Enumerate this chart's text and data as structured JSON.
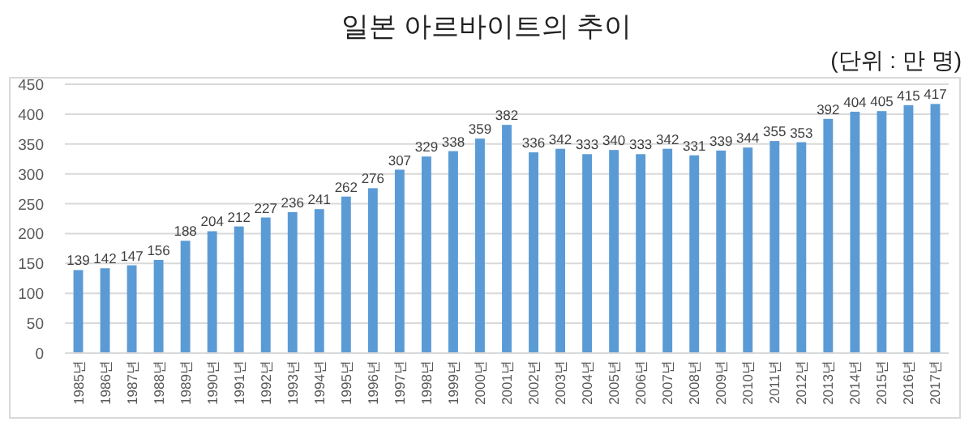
{
  "chart_data": {
    "type": "bar",
    "title": "일본 아르바이트의 추이",
    "annotations": [
      "(단위 : 만 명)"
    ],
    "categories": [
      "1985년",
      "1986년",
      "1987년",
      "1988년",
      "1989년",
      "1990년",
      "1991년",
      "1992년",
      "1993년",
      "1994년",
      "1995년",
      "1996년",
      "1997년",
      "1998년",
      "1999년",
      "2000년",
      "2001년",
      "2002년",
      "2003년",
      "2004년",
      "2005년",
      "2006년",
      "2007년",
      "2008년",
      "2009년",
      "2010년",
      "2011년",
      "2012년",
      "2013년",
      "2014년",
      "2015년",
      "2016년",
      "2017년"
    ],
    "values": [
      139,
      142,
      147,
      156,
      188,
      204,
      212,
      227,
      236,
      241,
      262,
      276,
      307,
      329,
      338,
      359,
      382,
      336,
      342,
      333,
      340,
      333,
      342,
      331,
      339,
      344,
      355,
      353,
      392,
      404,
      405,
      415,
      417
    ],
    "color": "#5b9bd5",
    "ylim": [
      0,
      450
    ],
    "yticks": [
      0,
      50,
      100,
      150,
      200,
      250,
      300,
      350,
      400,
      450
    ],
    "grid": "y",
    "data_labels": true
  }
}
